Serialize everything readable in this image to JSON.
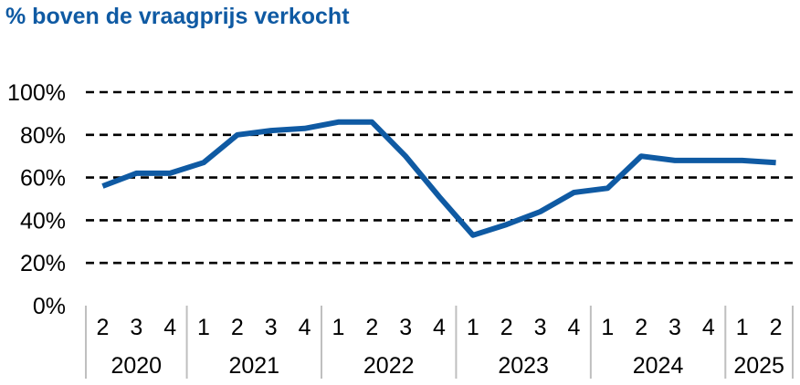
{
  "chart_data": {
    "type": "line",
    "title": "% boven de vraagprijs verkocht",
    "xlabel": "",
    "ylabel": "",
    "ylim": [
      0,
      100
    ],
    "yticks": [
      0,
      20,
      40,
      60,
      80,
      100
    ],
    "ytick_labels": [
      "0%",
      "20%",
      "40%",
      "60%",
      "80%",
      "100%"
    ],
    "grid": "dashed horizontal",
    "legend": "none",
    "x_levels": {
      "quarters": [
        "2",
        "3",
        "4",
        "1",
        "2",
        "3",
        "4",
        "1",
        "2",
        "3",
        "4",
        "1",
        "2",
        "3",
        "4",
        "1",
        "2",
        "3",
        "4",
        "1",
        "2"
      ],
      "years": [
        {
          "label": "2020",
          "count": 3
        },
        {
          "label": "2021",
          "count": 4
        },
        {
          "label": "2022",
          "count": 4
        },
        {
          "label": "2023",
          "count": 4
        },
        {
          "label": "2024",
          "count": 4
        },
        {
          "label": "2025",
          "count": 2
        }
      ]
    },
    "categories": [
      "2020 Q2",
      "2020 Q3",
      "2020 Q4",
      "2021 Q1",
      "2021 Q2",
      "2021 Q3",
      "2021 Q4",
      "2022 Q1",
      "2022 Q2",
      "2022 Q3",
      "2022 Q4",
      "2023 Q1",
      "2023 Q2",
      "2023 Q3",
      "2023 Q4",
      "2024 Q1",
      "2024 Q2",
      "2024 Q3",
      "2024 Q4",
      "2025 Q1",
      "2025 Q2"
    ],
    "series": [
      {
        "values": [
          56,
          62,
          62,
          67,
          80,
          82,
          83,
          86,
          86,
          70,
          51,
          33,
          38,
          44,
          53,
          55,
          70,
          68,
          68,
          68,
          67
        ]
      }
    ],
    "colors": {
      "line": "#0f5aa3",
      "title": "#0f5aa3",
      "grid": "#000000",
      "axis_box": "#bfbfbf"
    }
  }
}
